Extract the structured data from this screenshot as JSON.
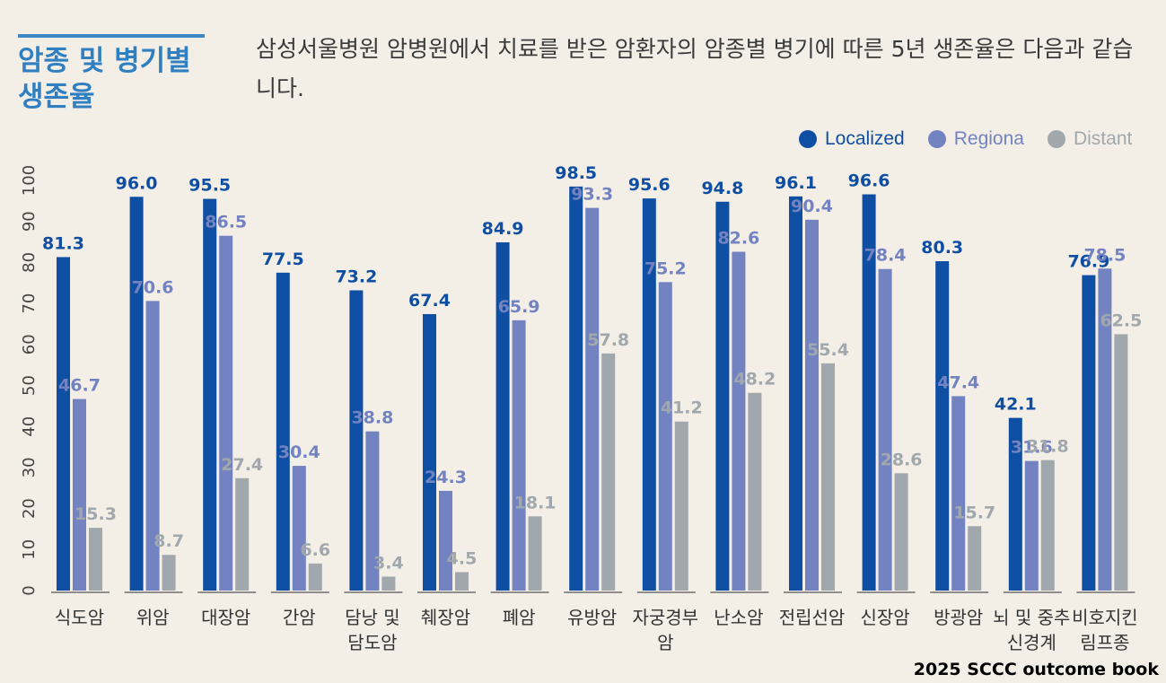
{
  "header": {
    "title": "암종 및 병기별 생존율",
    "description": "삼성서울병원 암병원에서 치료를 받은 암환자의 암종별 병기에 따른 5년 생존율은 다음과 같습니다."
  },
  "footer": {
    "source": "2025 SCCC outcome book"
  },
  "colors": {
    "localized": "#0f4fa3",
    "regional": "#7383c1",
    "distant": "#a1a8ad",
    "title": "#2f7fc1"
  },
  "chart_data": {
    "type": "bar",
    "categories": [
      "식도암",
      "위암",
      "대장암",
      "간암",
      "담낭 및 담도암",
      "췌장암",
      "폐암",
      "유방암",
      "자궁경부암",
      "난소암",
      "전립선암",
      "신장암",
      "방광암",
      "뇌 및 중추 신경계",
      "비호지킨 림프종"
    ],
    "category_lines": [
      [
        "식도암"
      ],
      [
        "위암"
      ],
      [
        "대장암"
      ],
      [
        "간암"
      ],
      [
        "담낭 및",
        "담도암"
      ],
      [
        "췌장암"
      ],
      [
        "폐암"
      ],
      [
        "유방암"
      ],
      [
        "자궁경부",
        "암"
      ],
      [
        "난소암"
      ],
      [
        "전립선암"
      ],
      [
        "신장암"
      ],
      [
        "방광암"
      ],
      [
        "뇌 및 중추",
        "신경계"
      ],
      [
        "비호지킨",
        "림프종"
      ]
    ],
    "series": [
      {
        "name": "Localized",
        "values": [
          81.3,
          96.0,
          95.5,
          77.5,
          73.2,
          67.4,
          84.9,
          98.5,
          95.6,
          94.8,
          96.1,
          96.6,
          80.3,
          42.1,
          76.9
        ]
      },
      {
        "name": "Regiona",
        "values": [
          46.7,
          70.6,
          86.5,
          30.4,
          38.8,
          24.3,
          65.9,
          93.3,
          75.2,
          82.6,
          90.4,
          78.4,
          47.4,
          31.6,
          78.5
        ]
      },
      {
        "name": "Distant",
        "values": [
          15.3,
          8.7,
          27.4,
          6.6,
          3.4,
          4.5,
          18.1,
          57.8,
          41.2,
          48.2,
          55.4,
          28.6,
          15.7,
          31.8,
          62.5
        ]
      }
    ],
    "value_labels": [
      [
        "81.3",
        "96.0",
        "95.5",
        "77.5",
        "73.2",
        "67.4",
        "84.9",
        "98.5",
        "95.6",
        "94.8",
        "96.1",
        "96.6",
        "80.3",
        "42.1",
        "76.9"
      ],
      [
        "46.7",
        "70.6",
        "86.5",
        "30.4",
        "38.8",
        "24.3",
        "65.9",
        "93.3",
        "75.2",
        "82.6",
        "90.4",
        "78.4",
        "47.4",
        "31.6",
        "78.5"
      ],
      [
        "15.3",
        "8.7",
        "27.4",
        "6.6",
        "3.4",
        "4.5",
        "18.1",
        "57.8",
        "41.2",
        "48.2",
        "55.4",
        "28.6",
        "15.7",
        "31.8",
        "62.5"
      ]
    ],
    "y_ticks": [
      "0",
      "10",
      "20",
      "30",
      "40",
      "50",
      "60",
      "70",
      "80",
      "90",
      "100"
    ],
    "ylim": [
      0,
      100
    ],
    "legend_position": "top-right",
    "grid": false
  }
}
